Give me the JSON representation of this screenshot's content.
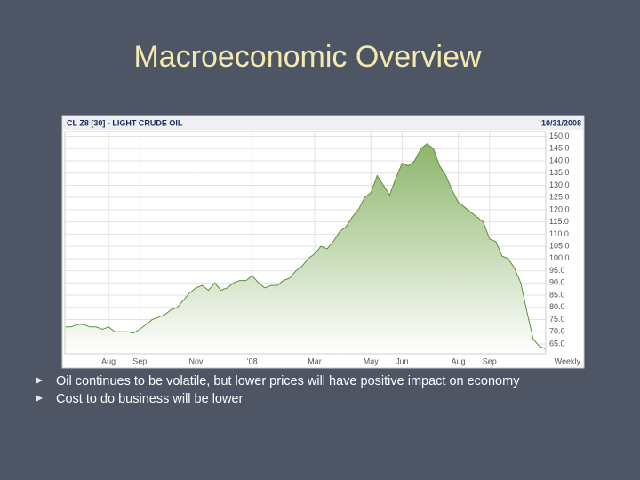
{
  "slide": {
    "title": "Macroeconomic Overview",
    "bullets": [
      "Oil continues to be volatile, but lower prices will have positive impact on economy",
      "Cost to do business will be lower"
    ]
  },
  "chart_data": {
    "type": "area",
    "title": "CL Z8 [30] - LIGHT CRUDE OIL",
    "date": "10/31/2008",
    "x_axis_label": "Weekly",
    "color": "#5f8f3e",
    "grid": true,
    "categories": [
      null,
      null,
      null,
      null,
      null,
      null,
      null,
      "Aug",
      null,
      null,
      null,
      null,
      "Sep",
      null,
      null,
      null,
      null,
      null,
      null,
      null,
      null,
      "Nov",
      null,
      null,
      null,
      null,
      null,
      null,
      null,
      null,
      "'08",
      null,
      null,
      null,
      null,
      null,
      null,
      null,
      null,
      null,
      "Mar",
      null,
      null,
      null,
      null,
      null,
      null,
      null,
      null,
      "May",
      null,
      null,
      null,
      null,
      "Jun",
      null,
      null,
      null,
      null,
      null,
      null,
      null,
      null,
      "Aug",
      null,
      null,
      null,
      null,
      "Sep",
      null,
      null,
      null,
      null,
      null,
      null,
      null,
      null,
      null
    ],
    "values": [
      72,
      72,
      73,
      73,
      72,
      72,
      71,
      72,
      70,
      70,
      70,
      69.5,
      71,
      73,
      75,
      76,
      77,
      79,
      80,
      83,
      86,
      88,
      89,
      87,
      90,
      87,
      88,
      90,
      91,
      91,
      93,
      90,
      88,
      89,
      89,
      91,
      92,
      95,
      97,
      100,
      102,
      105,
      104,
      107,
      111,
      113,
      117,
      120,
      125,
      127,
      134,
      130,
      126,
      133,
      139,
      138,
      140,
      145,
      147,
      145,
      138,
      134,
      128,
      123,
      121,
      119,
      117,
      115,
      108,
      107,
      101,
      100,
      96,
      90,
      78,
      67,
      64,
      63
    ],
    "ylim": [
      61,
      152
    ],
    "yticks": [
      {
        "value": 65,
        "label": "65.0"
      },
      {
        "value": 70,
        "label": "70.0"
      },
      {
        "value": 75,
        "label": "75.0"
      },
      {
        "value": 80,
        "label": "80.0"
      },
      {
        "value": 85,
        "label": "85.0"
      },
      {
        "value": 90,
        "label": "90.0"
      },
      {
        "value": 95,
        "label": "95.0"
      },
      {
        "value": 100,
        "label": "100.0"
      },
      {
        "value": 105,
        "label": "105.0"
      },
      {
        "value": 110,
        "label": "110.0"
      },
      {
        "value": 115,
        "label": "115.0"
      },
      {
        "value": 120,
        "label": "120.0"
      },
      {
        "value": 125,
        "label": "125.0"
      },
      {
        "value": 130,
        "label": "130.0"
      },
      {
        "value": 135,
        "label": "135.0"
      },
      {
        "value": 140,
        "label": "140.0"
      },
      {
        "value": 145,
        "label": "145.0"
      },
      {
        "value": 150,
        "label": "150.0"
      }
    ]
  }
}
